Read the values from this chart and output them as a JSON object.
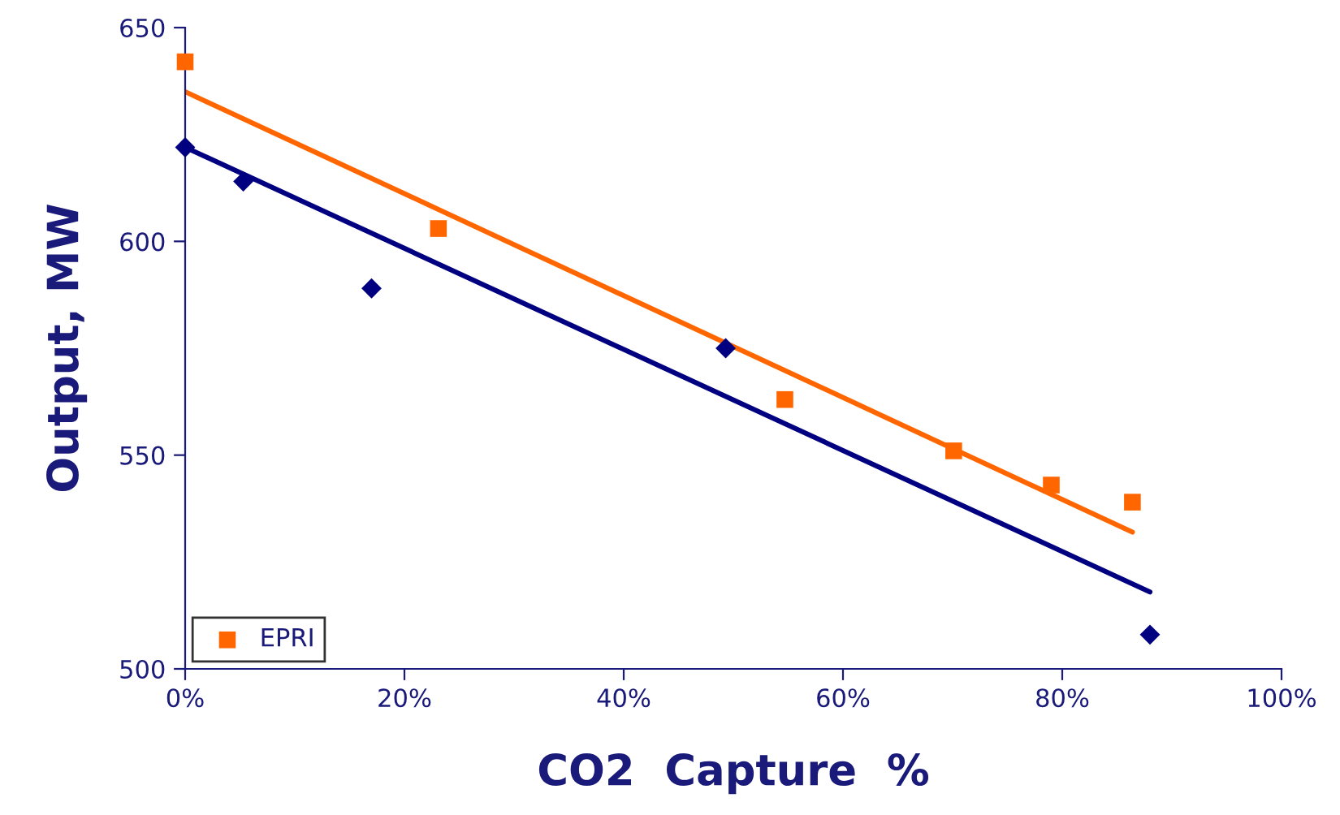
{
  "chart_data": {
    "type": "scatter",
    "xlabel": "CO2  Capture  %",
    "ylabel": "Output, MW",
    "xlim": [
      0,
      100
    ],
    "ylim": [
      500,
      650
    ],
    "xticks": [
      {
        "value": 0,
        "label": "0%"
      },
      {
        "value": 20,
        "label": "20%"
      },
      {
        "value": 40,
        "label": "40%"
      },
      {
        "value": 60,
        "label": "60%"
      },
      {
        "value": 80,
        "label": "80%"
      },
      {
        "value": 100,
        "label": "100%"
      }
    ],
    "yticks": [
      500,
      550,
      600,
      650
    ],
    "grid": false,
    "legend": "bottom left",
    "series": [
      {
        "color": "#000080",
        "marker": "diamond",
        "x": [
          0,
          5.3,
          17.0,
          49.3,
          88.0
        ],
        "values": [
          622,
          614,
          589,
          575,
          508
        ]
      },
      {
        "name": "EPRI",
        "color": "#ff6600",
        "marker": "square",
        "x": [
          0,
          23.1,
          54.7,
          70.1,
          79.0,
          86.4
        ],
        "values": [
          642,
          603,
          563,
          551,
          543,
          539
        ]
      },
      {
        "type": "line",
        "color": "#000080",
        "x": [
          0,
          88.0
        ],
        "values": [
          622,
          518
        ]
      },
      {
        "type": "line",
        "color": "#ff6600",
        "x": [
          0,
          86.4
        ],
        "values": [
          635,
          532
        ]
      }
    ]
  }
}
